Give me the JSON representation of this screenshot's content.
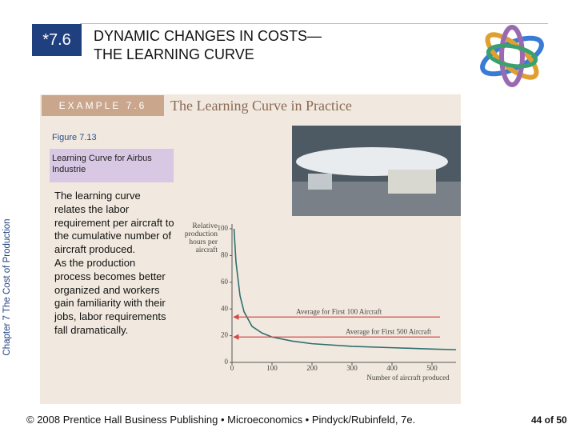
{
  "header": {
    "number": "*7.6",
    "title_line1": "DYNAMIC CHANGES IN COSTS—",
    "title_line2": "THE LEARNING CURVE"
  },
  "example": {
    "label": "EXAMPLE 7.6",
    "title": "The Learning Curve in Practice"
  },
  "figure": {
    "label": "Figure 7.13",
    "caption": "Learning Curve for Airbus Industrie"
  },
  "body": [
    "The learning curve relates the labor requirement per aircraft to the cumulative number of aircraft produced.",
    "As the production process becomes better organized and workers gain familiarity with their jobs, labor requirements fall dramatically."
  ],
  "side_label": "Chapter 7 The Cost of Production",
  "footer": {
    "credit": "© 2008 Prentice Hall Business Publishing • Microeconomics • Pindyck/Rubinfeld, 7e.",
    "page": "44 of 50"
  },
  "chart_data": {
    "type": "line",
    "y_label": "Relative production hours per aircraft",
    "x_label": "Number of aircraft produced",
    "x": [
      5,
      10,
      20,
      30,
      50,
      75,
      100,
      150,
      200,
      300,
      400,
      500,
      560
    ],
    "series": [
      {
        "color": "#2f6f6f",
        "values": [
          100,
          75,
          50,
          38,
          27,
          22,
          19,
          16,
          14,
          12,
          11,
          10,
          9.5
        ]
      }
    ],
    "annotations": [
      {
        "text": "Average for First 100 Aircraft",
        "y": 34,
        "color": "#d24a4a"
      },
      {
        "text": "Average for First 500 Aircraft",
        "y": 19,
        "color": "#d24a4a"
      }
    ],
    "xlim": [
      0,
      560
    ],
    "ylim": [
      0,
      100
    ],
    "xticks": [
      0,
      100,
      200,
      300,
      400,
      500
    ],
    "yticks": [
      0,
      20,
      40,
      60,
      80,
      100
    ]
  }
}
